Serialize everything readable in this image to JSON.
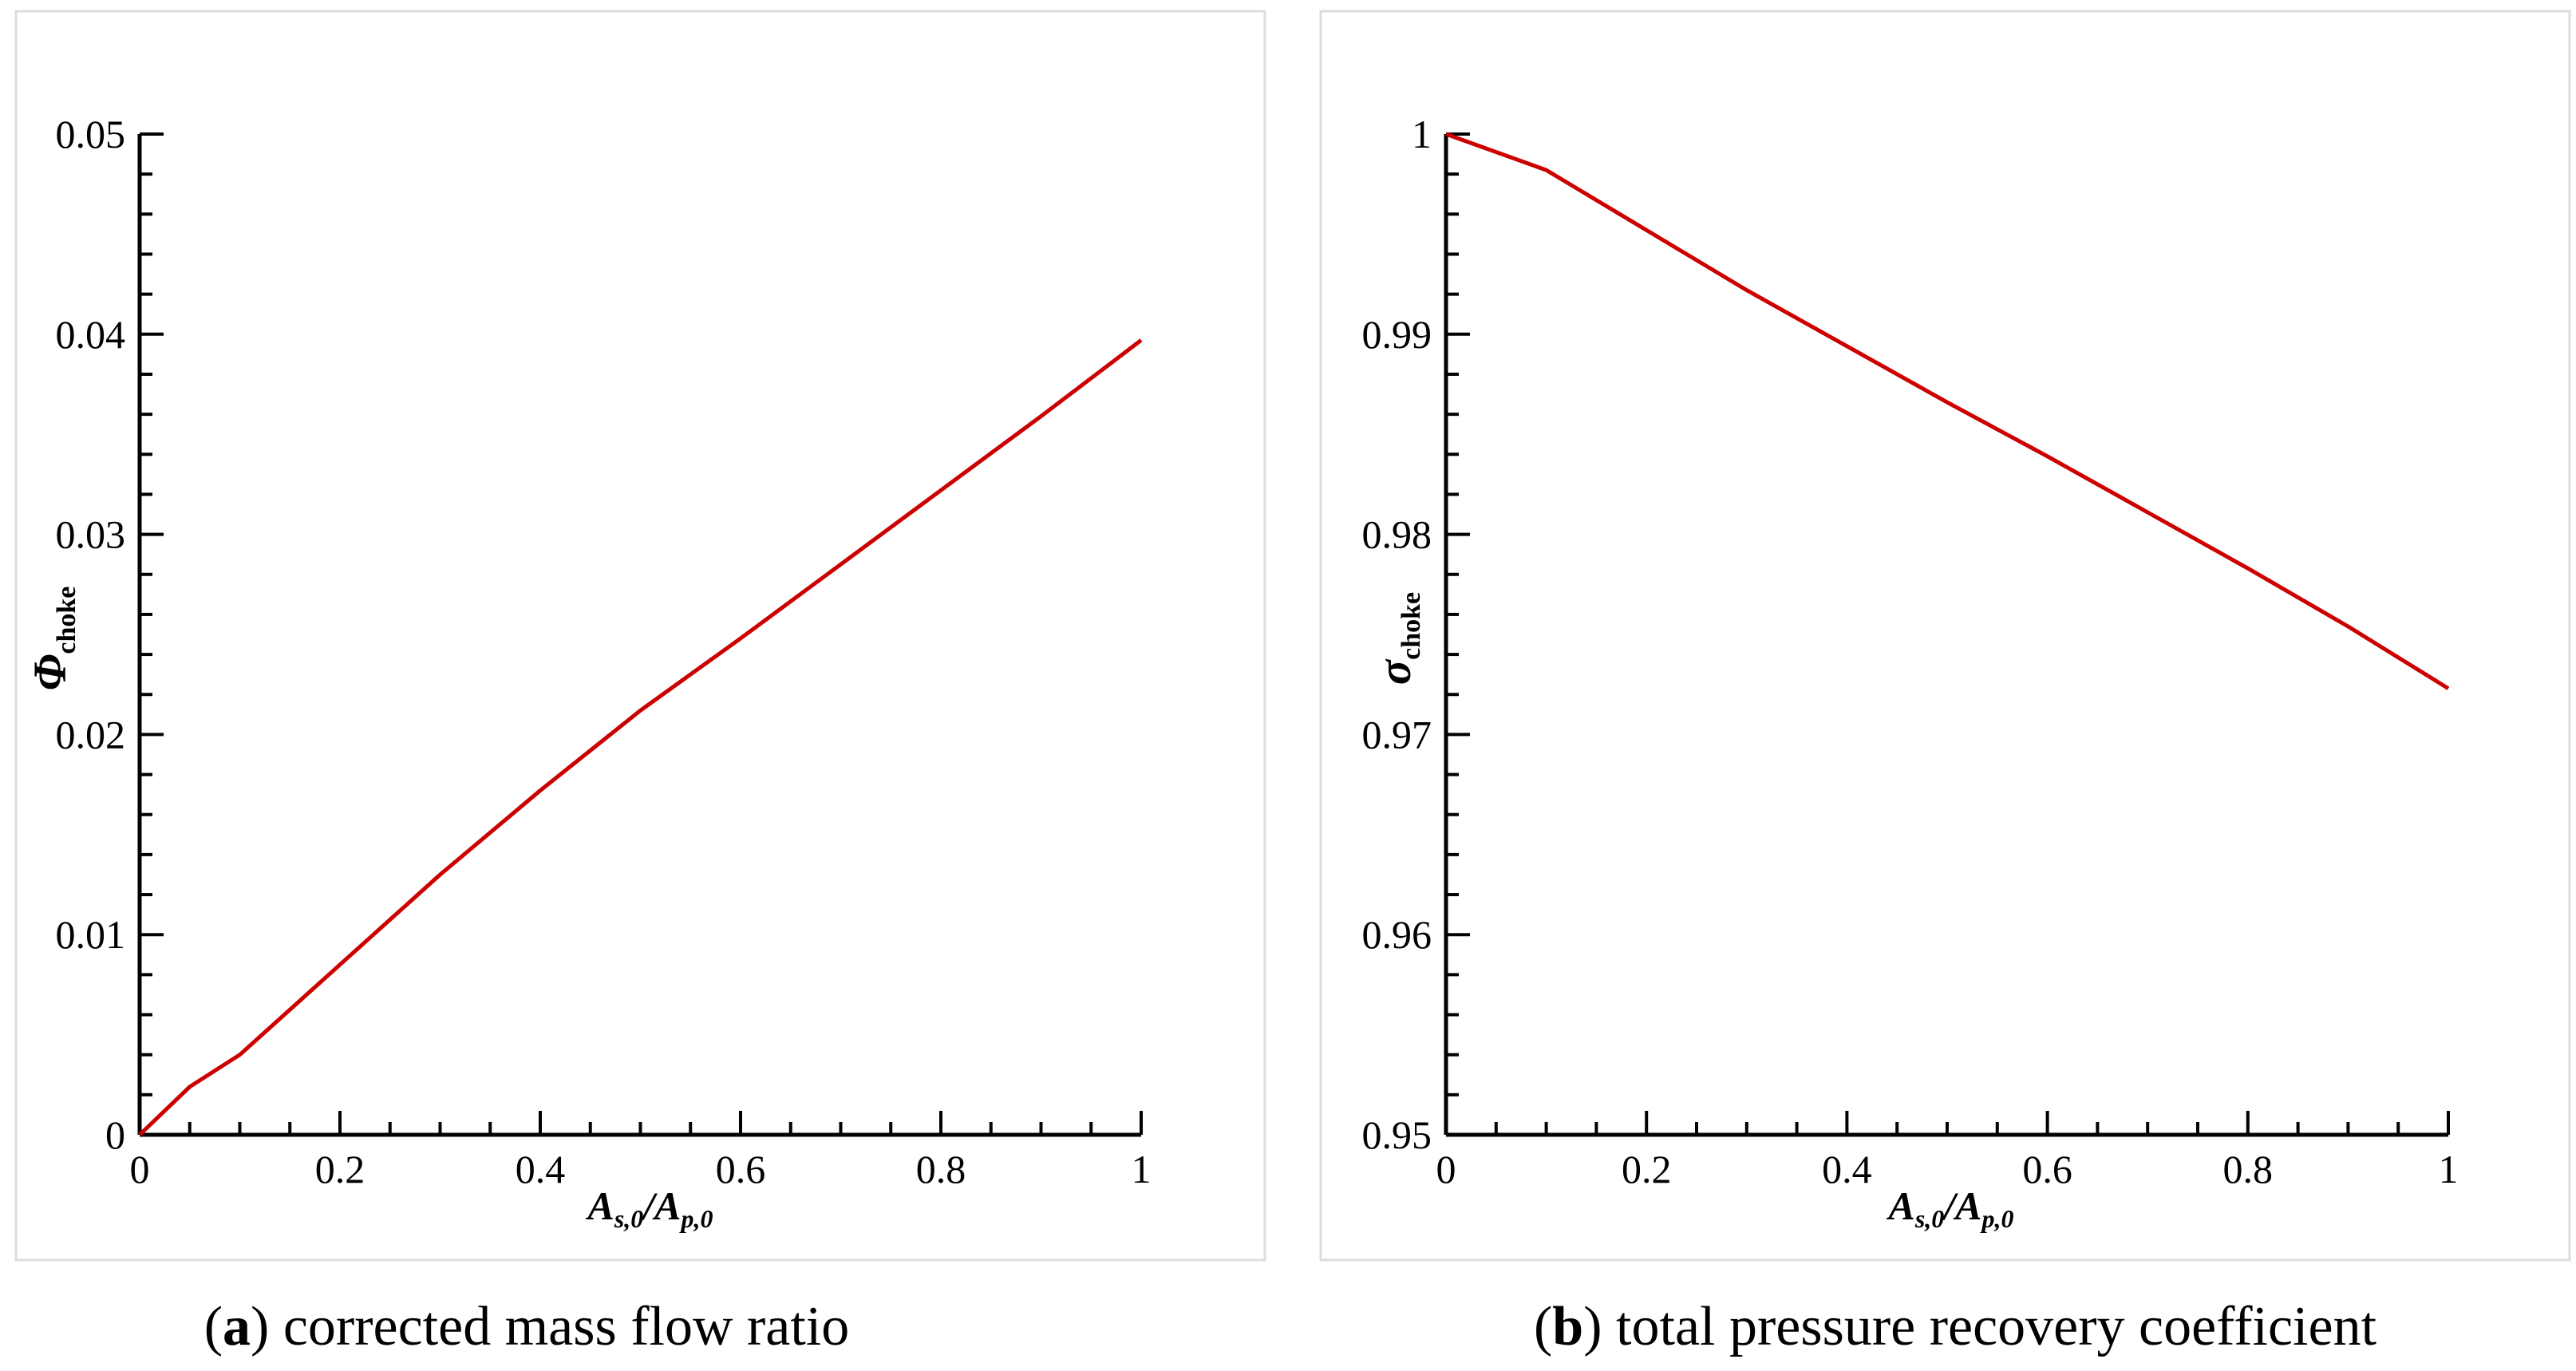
{
  "captions": [
    {
      "letter": "a",
      "text": " corrected mass flow ratio"
    },
    {
      "letter": "b",
      "text": " total pressure recovery coefficient"
    }
  ],
  "chart_data": [
    {
      "type": "line",
      "title": "",
      "xlabel": {
        "base": "A",
        "sub1": "s,0",
        "slash": "/",
        "base2": "A",
        "sub2": "p,0"
      },
      "ylabel": {
        "symbol": "Φ",
        "sub": "choke"
      },
      "xlim": [
        0,
        1
      ],
      "ylim": [
        0,
        0.05
      ],
      "xticks": [
        "0",
        "0.2",
        "0.4",
        "0.6",
        "0.8",
        "1"
      ],
      "yticks": [
        "0",
        "0.01",
        "0.02",
        "0.03",
        "0.04",
        "0.05"
      ],
      "series": [
        {
          "name": "Φchoke",
          "color": "#cc0000",
          "x": [
            0,
            0.05,
            0.1,
            0.2,
            0.3,
            0.4,
            0.5,
            0.6,
            0.7,
            0.8,
            0.9,
            1.0
          ],
          "y": [
            0,
            0.0024,
            0.004,
            0.0085,
            0.013,
            0.0172,
            0.0212,
            0.0248,
            0.0285,
            0.0322,
            0.0359,
            0.0397
          ]
        }
      ]
    },
    {
      "type": "line",
      "title": "",
      "xlabel": {
        "base": "A",
        "sub1": "s,0",
        "slash": "/",
        "base2": "A",
        "sub2": "p,0"
      },
      "ylabel": {
        "symbol": "σ",
        "sub": "choke"
      },
      "xlim": [
        0,
        1
      ],
      "ylim": [
        0.95,
        1
      ],
      "xticks": [
        "0",
        "0.2",
        "0.4",
        "0.6",
        "0.8",
        "1"
      ],
      "yticks": [
        "0.95",
        "0.96",
        "0.97",
        "0.98",
        "0.99",
        "1"
      ],
      "series": [
        {
          "name": "σchoke",
          "color": "#cc0000",
          "x": [
            0,
            0.1,
            0.2,
            0.3,
            0.4,
            0.5,
            0.6,
            0.7,
            0.8,
            0.9,
            1.0
          ],
          "y": [
            1.0,
            0.9982,
            0.9952,
            0.9922,
            0.9894,
            0.9866,
            0.9839,
            0.9811,
            0.9783,
            0.9754,
            0.9723
          ]
        }
      ]
    }
  ]
}
